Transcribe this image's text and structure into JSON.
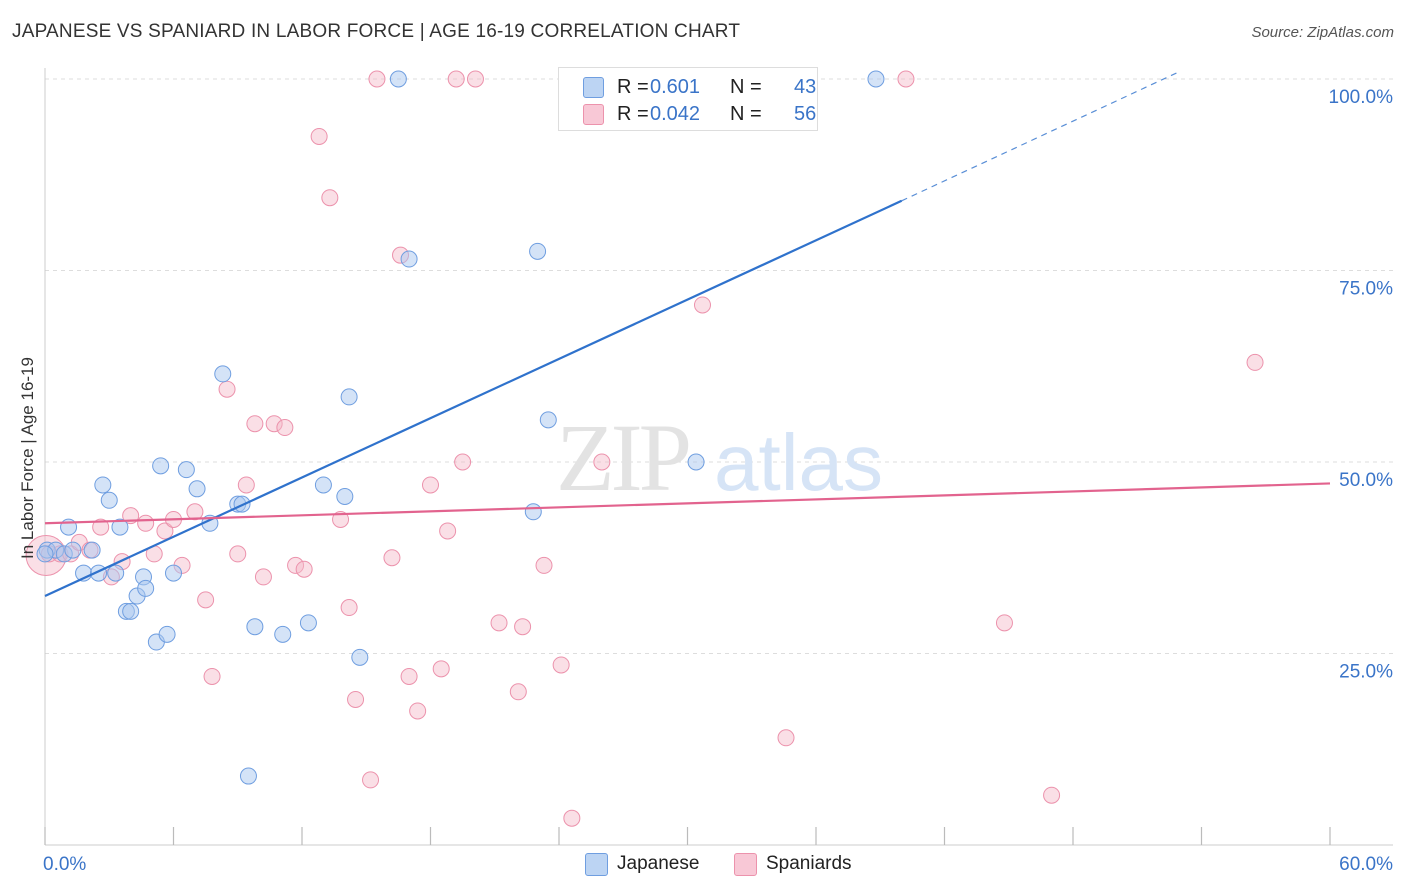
{
  "title": "JAPANESE VS SPANIARD IN LABOR FORCE | AGE 16-19 CORRELATION CHART",
  "source": "Source: ZipAtlas.com",
  "watermark": {
    "zip": "ZIP",
    "atlas": "atlas"
  },
  "colors": {
    "japanese_fill": "#a9c8f0",
    "japanese_stroke": "#6f9ee0",
    "japanese_line": "#2f72cc",
    "spaniards_fill": "#f5b7c8",
    "spaniards_stroke": "#ec92ac",
    "spaniards_line": "#e2638e",
    "axis_text": "#3a74c8",
    "grid": "#dddddd"
  },
  "legend_top": {
    "japanese": {
      "r_label": "R =",
      "r_value": "0.601",
      "n_label": "N =",
      "n_value": "43"
    },
    "spaniards": {
      "r_label": "R =",
      "r_value": "0.042",
      "n_label": "N =",
      "n_value": "56"
    }
  },
  "legend_bottom": {
    "japanese": "Japanese",
    "spaniards": "Spaniards"
  },
  "chart_data": {
    "type": "scatter",
    "title": "JAPANESE VS SPANIARD IN LABOR FORCE | AGE 16-19 CORRELATION CHART",
    "xlabel": "",
    "ylabel": "In Labor Force | Age 16-19",
    "xlim": [
      0,
      60
    ],
    "ylim": [
      0,
      100
    ],
    "x_tick_labels": [
      "0.0%",
      "60.0%"
    ],
    "y_tick_labels": [
      {
        "value": 100,
        "label": "100.0%"
      },
      {
        "value": 75,
        "label": "75.0%"
      },
      {
        "value": 50,
        "label": "50.0%"
      },
      {
        "value": 25,
        "label": "25.0%"
      }
    ],
    "grid": true,
    "legend_position": "top-center",
    "series": [
      {
        "name": "Japanese",
        "r": 0.601,
        "n": 43,
        "trend": {
          "x0": 0,
          "y0": 32.5,
          "x1": 40,
          "y1": 84.1,
          "dashed_to_x": 53,
          "dashed_to_y": 101
        },
        "points": [
          [
            0.1,
            38.5
          ],
          [
            0.5,
            38.5
          ],
          [
            0.9,
            38.0
          ],
          [
            1.1,
            41.5
          ],
          [
            1.3,
            38.5
          ],
          [
            1.8,
            35.5
          ],
          [
            2.2,
            38.5
          ],
          [
            2.5,
            35.5
          ],
          [
            2.7,
            47.0
          ],
          [
            3.0,
            45.0
          ],
          [
            3.3,
            35.5
          ],
          [
            3.5,
            41.5
          ],
          [
            3.8,
            30.5
          ],
          [
            4.0,
            30.5
          ],
          [
            4.3,
            32.5
          ],
          [
            4.6,
            35.0
          ],
          [
            4.7,
            33.5
          ],
          [
            5.2,
            26.5
          ],
          [
            5.4,
            49.5
          ],
          [
            5.7,
            27.5
          ],
          [
            6.0,
            35.5
          ],
          [
            6.6,
            49.0
          ],
          [
            7.1,
            46.5
          ],
          [
            7.7,
            42.0
          ],
          [
            8.3,
            61.5
          ],
          [
            9.0,
            44.5
          ],
          [
            9.2,
            44.5
          ],
          [
            9.5,
            9.0
          ],
          [
            9.8,
            28.5
          ],
          [
            11.1,
            27.5
          ],
          [
            12.3,
            29.0
          ],
          [
            13.0,
            47.0
          ],
          [
            14.0,
            45.5
          ],
          [
            14.2,
            58.5
          ],
          [
            14.7,
            24.5
          ],
          [
            16.5,
            100.0
          ],
          [
            17.0,
            76.5
          ],
          [
            22.8,
            43.5
          ],
          [
            23.0,
            77.5
          ],
          [
            23.5,
            55.5
          ],
          [
            30.4,
            50.0
          ],
          [
            38.8,
            100.0
          ],
          [
            0.0,
            38.0
          ]
        ]
      },
      {
        "name": "Spaniards",
        "r": 0.042,
        "n": 56,
        "trend": {
          "x0": 0,
          "y0": 42.0,
          "x1": 60,
          "y1": 47.2
        },
        "points": [
          [
            0.2,
            38.0
          ],
          [
            0.7,
            38.0
          ],
          [
            1.2,
            38.0
          ],
          [
            1.6,
            39.5
          ],
          [
            2.1,
            38.5
          ],
          [
            2.6,
            41.5
          ],
          [
            3.1,
            35.0
          ],
          [
            3.6,
            37.0
          ],
          [
            4.0,
            43.0
          ],
          [
            4.7,
            42.0
          ],
          [
            5.1,
            38.0
          ],
          [
            5.6,
            41.0
          ],
          [
            6.0,
            42.5
          ],
          [
            6.4,
            36.5
          ],
          [
            7.0,
            43.5
          ],
          [
            7.5,
            32.0
          ],
          [
            7.8,
            22.0
          ],
          [
            8.5,
            59.5
          ],
          [
            9.0,
            38.0
          ],
          [
            9.4,
            47.0
          ],
          [
            9.8,
            55.0
          ],
          [
            10.2,
            35.0
          ],
          [
            10.7,
            55.0
          ],
          [
            11.2,
            54.5
          ],
          [
            11.7,
            36.5
          ],
          [
            12.1,
            36.0
          ],
          [
            12.8,
            92.5
          ],
          [
            13.3,
            84.5
          ],
          [
            13.8,
            42.5
          ],
          [
            14.2,
            31.0
          ],
          [
            14.5,
            19.0
          ],
          [
            15.2,
            8.5
          ],
          [
            15.5,
            100.0
          ],
          [
            16.2,
            37.5
          ],
          [
            16.6,
            77.0
          ],
          [
            17.0,
            22.0
          ],
          [
            17.4,
            17.5
          ],
          [
            18.0,
            47.0
          ],
          [
            18.5,
            23.0
          ],
          [
            18.8,
            41.0
          ],
          [
            19.5,
            50.0
          ],
          [
            19.2,
            100.0
          ],
          [
            20.1,
            100.0
          ],
          [
            21.2,
            29.0
          ],
          [
            22.1,
            20.0
          ],
          [
            22.3,
            28.5
          ],
          [
            23.3,
            36.5
          ],
          [
            24.1,
            23.5
          ],
          [
            24.6,
            3.5
          ],
          [
            26.0,
            50.0
          ],
          [
            30.7,
            70.5
          ],
          [
            34.6,
            14.0
          ],
          [
            40.2,
            100.0
          ],
          [
            44.8,
            29.0
          ],
          [
            47.0,
            6.5
          ],
          [
            56.5,
            63.0
          ]
        ]
      }
    ]
  }
}
